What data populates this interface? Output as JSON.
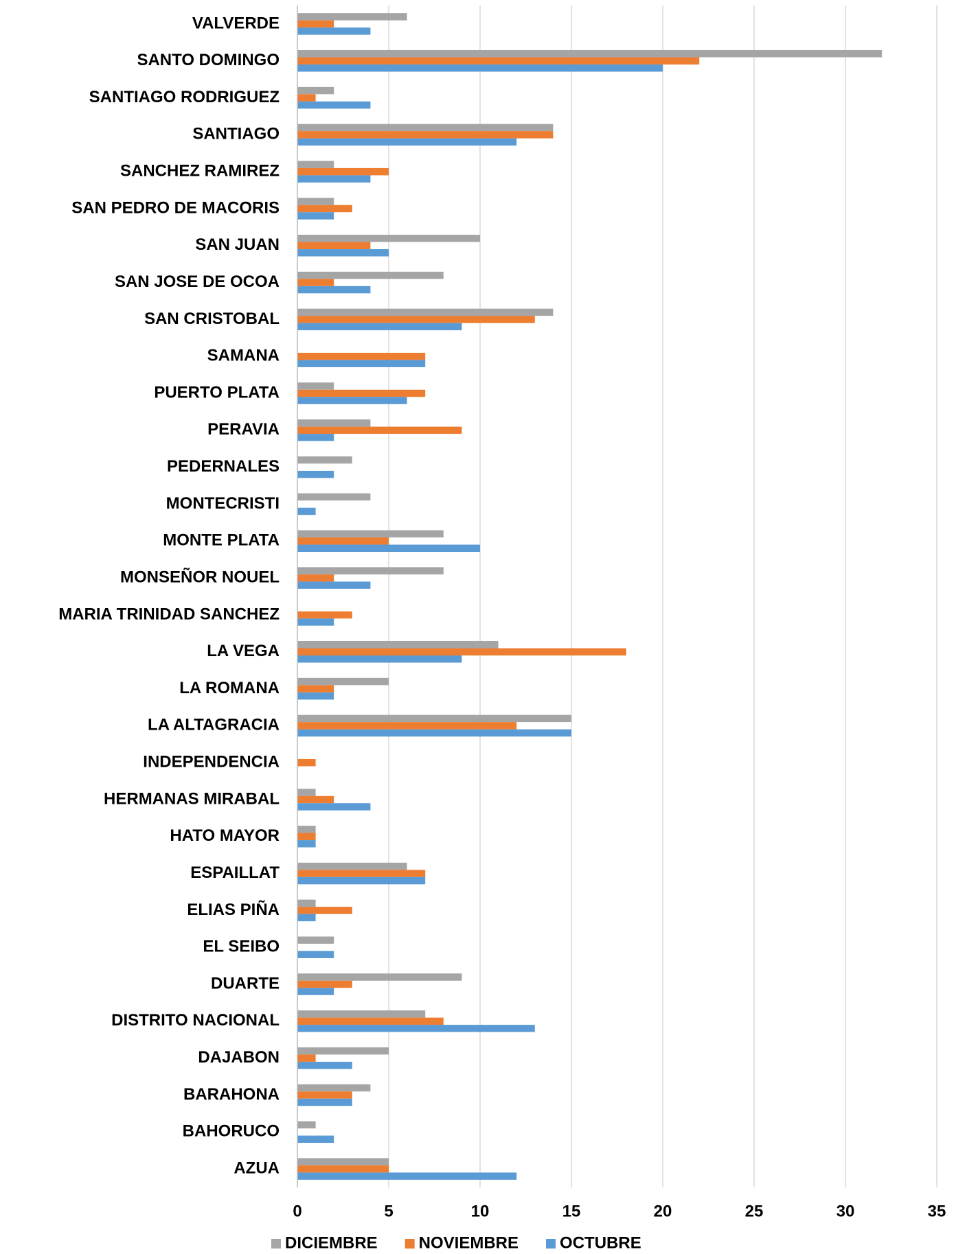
{
  "chart_data": {
    "type": "hbar",
    "categories": [
      "VALVERDE",
      "SANTO DOMINGO",
      "SANTIAGO RODRIGUEZ",
      "SANTIAGO",
      "SANCHEZ RAMIREZ",
      "SAN PEDRO DE MACORIS",
      "SAN JUAN",
      "SAN JOSE DE OCOA",
      "SAN CRISTOBAL",
      "SAMANA",
      "PUERTO PLATA",
      "PERAVIA",
      "PEDERNALES",
      "MONTECRISTI",
      "MONTE PLATA",
      "MONSEÑOR NOUEL",
      "MARIA TRINIDAD SANCHEZ",
      "LA VEGA",
      "LA ROMANA",
      "LA ALTAGRACIA",
      "INDEPENDENCIA",
      "HERMANAS MIRABAL",
      "HATO MAYOR",
      "ESPAILLAT",
      "ELIAS PIÑA",
      "EL SEIBO",
      "DUARTE",
      "DISTRITO NACIONAL",
      "DAJABON",
      "BARAHONA",
      "BAHORUCO",
      "AZUA"
    ],
    "series": [
      {
        "name": "DICIEMBRE",
        "color": "#a5a5a5",
        "values": [
          6,
          32,
          2,
          14,
          2,
          2,
          10,
          8,
          14,
          0,
          2,
          4,
          3,
          4,
          8,
          8,
          0,
          11,
          5,
          15,
          0,
          1,
          1,
          6,
          1,
          2,
          9,
          7,
          5,
          4,
          1,
          5
        ]
      },
      {
        "name": "NOVIEMBRE",
        "color": "#ed7d31",
        "values": [
          2,
          22,
          1,
          14,
          5,
          3,
          4,
          2,
          13,
          7,
          7,
          9,
          0,
          0,
          5,
          2,
          3,
          18,
          2,
          12,
          1,
          2,
          1,
          7,
          3,
          0,
          3,
          8,
          1,
          3,
          0,
          5
        ]
      },
      {
        "name": "OCTUBRE",
        "color": "#5b9bd5",
        "values": [
          4,
          20,
          4,
          12,
          4,
          2,
          5,
          4,
          9,
          7,
          6,
          2,
          2,
          1,
          10,
          4,
          2,
          9,
          2,
          15,
          0,
          4,
          1,
          7,
          1,
          2,
          2,
          13,
          3,
          3,
          2,
          12
        ]
      }
    ],
    "xlim": [
      0,
      35
    ],
    "xticks": [
      0,
      5,
      10,
      15,
      20,
      25,
      30,
      35
    ],
    "grid": true,
    "legend": "bottom"
  }
}
